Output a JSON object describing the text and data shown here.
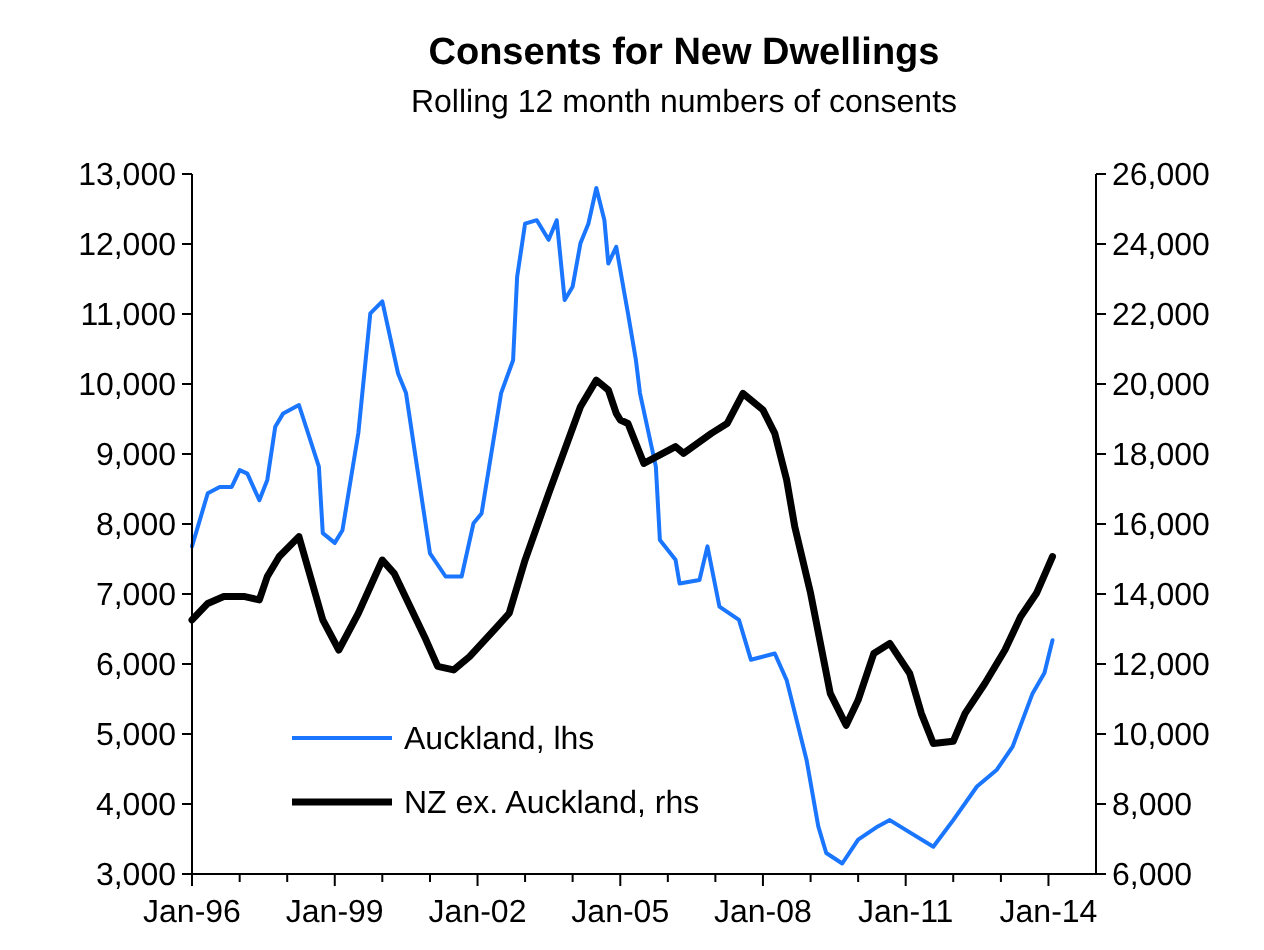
{
  "chart_data": {
    "type": "line",
    "title": "Consents for New Dwellings",
    "subtitle": "Rolling 12 month numbers of consents",
    "xlim": [
      "1996-01",
      "2015-01"
    ],
    "xticks": [
      {
        "value": "1996-01",
        "label": "Jan-96"
      },
      {
        "value": "1997-01",
        "label": null
      },
      {
        "value": "1998-01",
        "label": null
      },
      {
        "value": "1999-01",
        "label": "Jan-99"
      },
      {
        "value": "2000-01",
        "label": null
      },
      {
        "value": "2001-01",
        "label": null
      },
      {
        "value": "2002-01",
        "label": "Jan-02"
      },
      {
        "value": "2003-01",
        "label": null
      },
      {
        "value": "2004-01",
        "label": null
      },
      {
        "value": "2005-01",
        "label": "Jan-05"
      },
      {
        "value": "2006-01",
        "label": null
      },
      {
        "value": "2007-01",
        "label": null
      },
      {
        "value": "2008-01",
        "label": "Jan-08"
      },
      {
        "value": "2009-01",
        "label": null
      },
      {
        "value": "2010-01",
        "label": null
      },
      {
        "value": "2011-01",
        "label": "Jan-11"
      },
      {
        "value": "2012-01",
        "label": null
      },
      {
        "value": "2013-01",
        "label": null
      },
      {
        "value": "2014-01",
        "label": "Jan-14"
      }
    ],
    "ylim": [
      3000,
      13000
    ],
    "yticks": [
      {
        "value": 3000,
        "label": "3,000"
      },
      {
        "value": 4000,
        "label": "4,000"
      },
      {
        "value": 5000,
        "label": "5,000"
      },
      {
        "value": 6000,
        "label": "6,000"
      },
      {
        "value": 7000,
        "label": "7,000"
      },
      {
        "value": 8000,
        "label": "8,000"
      },
      {
        "value": 9000,
        "label": "9,000"
      },
      {
        "value": 10000,
        "label": "10,000"
      },
      {
        "value": 11000,
        "label": "11,000"
      },
      {
        "value": 12000,
        "label": "12,000"
      },
      {
        "value": 13000,
        "label": "13,000"
      }
    ],
    "y2lim": [
      6000,
      26000
    ],
    "y2ticks": [
      {
        "value": 6000,
        "label": "6,000"
      },
      {
        "value": 8000,
        "label": "8,000"
      },
      {
        "value": 10000,
        "label": "10,000"
      },
      {
        "value": 12000,
        "label": "12,000"
      },
      {
        "value": 14000,
        "label": "14,000"
      },
      {
        "value": 16000,
        "label": "16,000"
      },
      {
        "value": 18000,
        "label": "18,000"
      },
      {
        "value": 20000,
        "label": "20,000"
      },
      {
        "value": 22000,
        "label": "22,000"
      },
      {
        "value": 24000,
        "label": "24,000"
      },
      {
        "value": 26000,
        "label": "26,000"
      }
    ],
    "legend": "bottom left",
    "grid": false,
    "series": [
      {
        "name": "Auckland, lhs",
        "color": "#1a75ff",
        "x": [
          "1996-01",
          "1996-05",
          "1996-08",
          "1996-11",
          "1997-01",
          "1997-03",
          "1997-06",
          "1997-08",
          "1997-10",
          "1997-12",
          "1998-04",
          "1998-09",
          "1998-10",
          "1999-01",
          "1999-03",
          "1999-07",
          "1999-10",
          "2000-01",
          "2000-05",
          "2000-07",
          "2001-01",
          "2001-05",
          "2001-09",
          "2001-12",
          "2002-02",
          "2002-07",
          "2002-10",
          "2002-11",
          "2003-01",
          "2003-04",
          "2003-07",
          "2003-09",
          "2003-11",
          "2004-01",
          "2004-03",
          "2004-05",
          "2004-07",
          "2004-09",
          "2004-10",
          "2004-12",
          "2005-02",
          "2005-03",
          "2005-05",
          "2005-06",
          "2005-10",
          "2005-11",
          "2006-03",
          "2006-04",
          "2006-09",
          "2006-11",
          "2007-02",
          "2007-07",
          "2007-10",
          "2008-04",
          "2008-07",
          "2008-12",
          "2009-03",
          "2009-05",
          "2009-09",
          "2010-01",
          "2010-06",
          "2010-09",
          "2011-01",
          "2011-08",
          "2012-01",
          "2012-07",
          "2012-12",
          "2013-04",
          "2013-09",
          "2013-12",
          "2014-02"
        ],
        "values": [
          7680,
          8440,
          8530,
          8530,
          8770,
          8720,
          8340,
          8630,
          9390,
          9580,
          9700,
          8820,
          7870,
          7730,
          7910,
          9300,
          11010,
          11180,
          10150,
          9870,
          7580,
          7250,
          7250,
          8010,
          8150,
          9870,
          10340,
          11530,
          12290,
          12340,
          12060,
          12340,
          11200,
          11390,
          12010,
          12290,
          12800,
          12340,
          11720,
          11960,
          11300,
          11010,
          10340,
          9870,
          8820,
          7770,
          7490,
          7150,
          7200,
          7680,
          6820,
          6630,
          6060,
          6150,
          5770,
          4630,
          3680,
          3300,
          3150,
          3490,
          3680,
          3770,
          3630,
          3390,
          3770,
          4250,
          4490,
          4820,
          5580,
          5870,
          6340
        ]
      },
      {
        "name": "NZ ex. Auckland, rhs",
        "color": "#000000",
        "axis": "y2",
        "x": [
          "1996-01",
          "1996-05",
          "1996-09",
          "1997-02",
          "1997-06",
          "1997-08",
          "1997-11",
          "1998-04",
          "1998-10",
          "1999-02",
          "1999-07",
          "2000-01",
          "2000-04",
          "2000-12",
          "2001-03",
          "2001-07",
          "2001-11",
          "2002-06",
          "2002-09",
          "2003-01",
          "2003-07",
          "2004-03",
          "2004-07",
          "2004-10",
          "2004-12",
          "2005-01",
          "2005-03",
          "2005-07",
          "2006-03",
          "2006-05",
          "2006-12",
          "2007-04",
          "2007-08",
          "2008-01",
          "2008-04",
          "2008-07",
          "2008-09",
          "2009-01",
          "2009-06",
          "2009-10",
          "2010-01",
          "2010-05",
          "2010-09",
          "2011-02",
          "2011-05",
          "2011-08",
          "2012-01",
          "2012-04",
          "2012-09",
          "2013-02",
          "2013-06",
          "2013-10",
          "2014-02"
        ],
        "values": [
          13260,
          13730,
          13930,
          13930,
          13830,
          14500,
          15070,
          15640,
          13260,
          12400,
          13450,
          14970,
          14590,
          12690,
          11930,
          11830,
          12210,
          13070,
          13450,
          14970,
          16870,
          19350,
          20110,
          19830,
          19160,
          18970,
          18870,
          17730,
          18210,
          18020,
          18590,
          18870,
          19730,
          19260,
          18590,
          17260,
          15930,
          14020,
          11160,
          10250,
          10970,
          12300,
          12590,
          11730,
          10590,
          9730,
          9790,
          10590,
          11450,
          12400,
          13350,
          14020,
          15070
        ]
      }
    ]
  }
}
